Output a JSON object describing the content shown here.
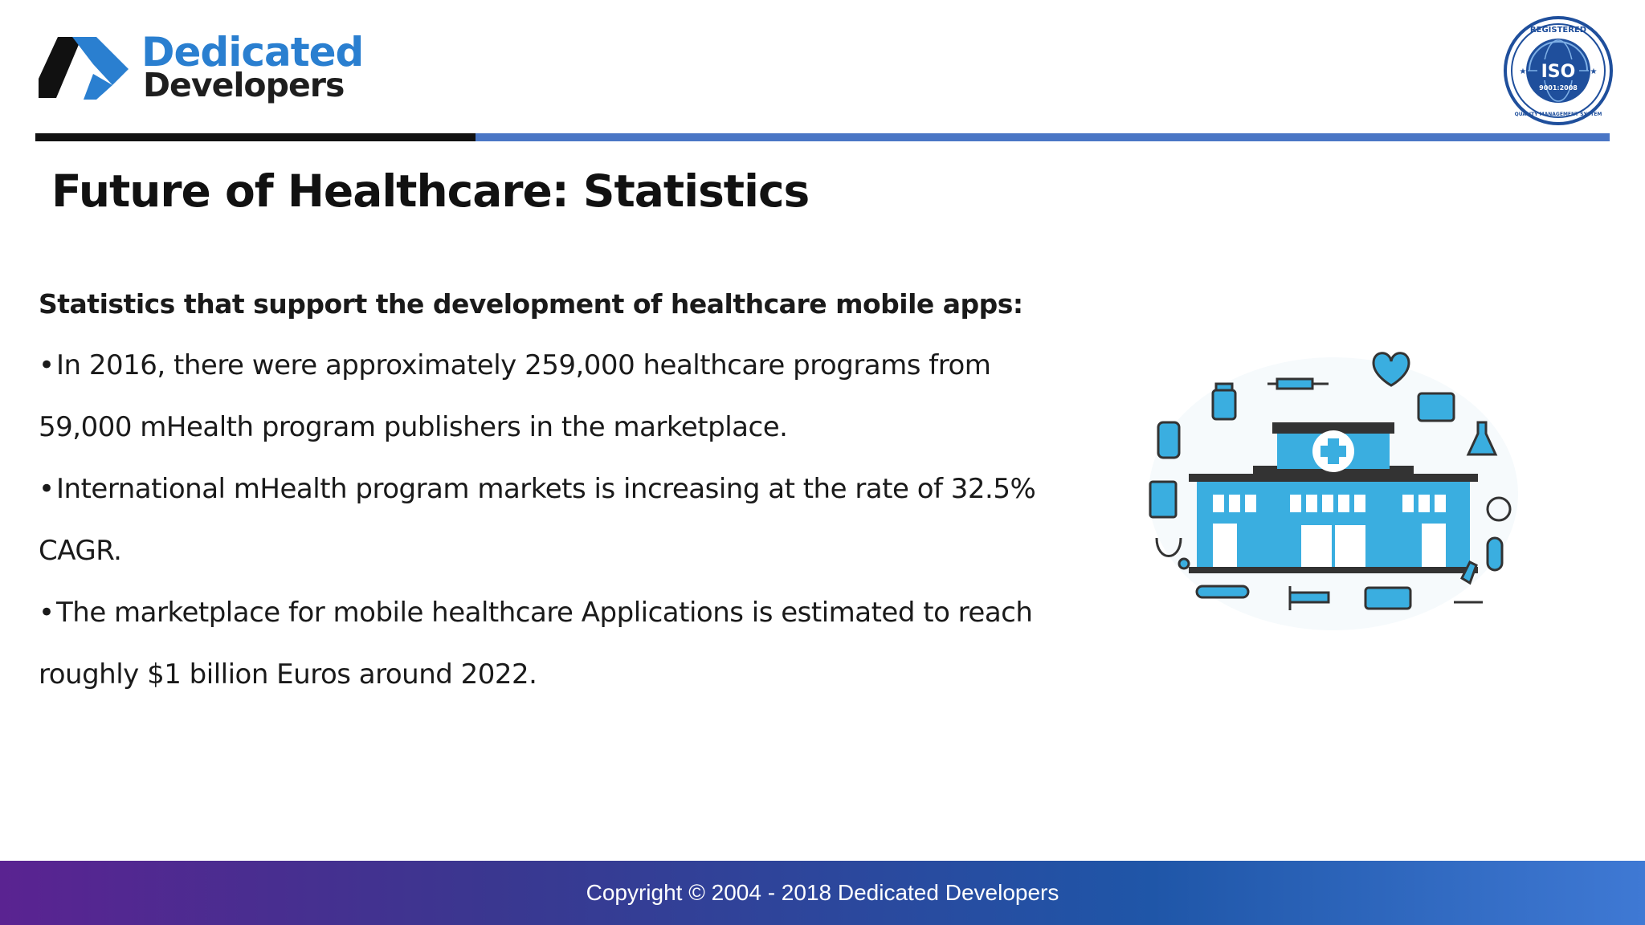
{
  "header": {
    "logo_line1": "Dedicated",
    "logo_line2": "Developers",
    "badge": {
      "top_text": "REGISTERED",
      "center_text": "ISO",
      "number_text": "9001:2008",
      "bottom_text": "QUALITY MANAGEMENT SYSTEM"
    }
  },
  "colors": {
    "brand_blue": "#2a7fd0",
    "divider_dark": "#111111",
    "divider_blue": "#4a76c5",
    "illustration_blue": "#3aaee0",
    "footer_gradient_start": "#5a2391",
    "footer_gradient_end": "#3f79d4"
  },
  "slide": {
    "title": "Future of Healthcare: Statistics",
    "intro": "Statistics that support the development of healthcare mobile apps:",
    "bullets": [
      {
        "line1": "In 2016, there were approximately 259,000 healthcare programs from",
        "line2": "59,000 mHealth program publishers in the marketplace."
      },
      {
        "line1": "International mHealth program markets is increasing at the rate of 32.5%",
        "line2": "CAGR."
      },
      {
        "line1": "The marketplace for mobile healthcare Applications is estimated to reach",
        "line2": "roughly $1 billion Euros around 2022."
      }
    ],
    "bullet_char": "•",
    "illustration_icon": "hospital-building-icon"
  },
  "footer": {
    "copyright": "Copyright © 2004 - 2018 Dedicated Developers"
  }
}
